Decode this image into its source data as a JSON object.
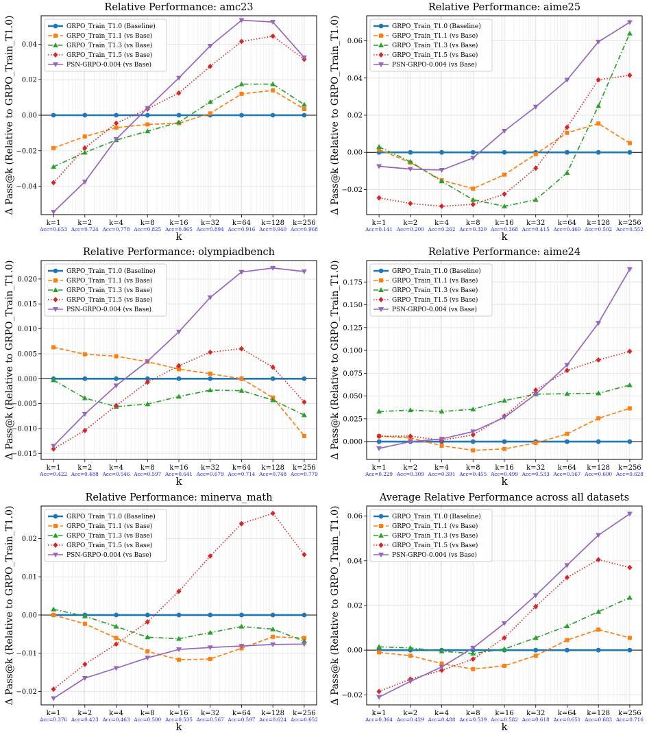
{
  "chart_data": [
    {
      "type": "line",
      "title": "Relative Performance: amc23",
      "xlabel": "k",
      "ylabel": "Δ Pass@k (Relative to GRPO_Train_T1.0)",
      "categories": [
        "k=1",
        "k=2",
        "k=4",
        "k=8",
        "k=16",
        "k=32",
        "k=64",
        "k=128",
        "k=256"
      ],
      "acc_labels": [
        "Acc=0.653",
        "Acc=0.724",
        "Acc=0.778",
        "Acc=0.825",
        "Acc=0.865",
        "Acc=0.894",
        "Acc=0.916",
        "Acc=0.940",
        "Acc=0.968"
      ],
      "ylim": [
        -0.056,
        0.056
      ],
      "yticks": [
        -0.04,
        -0.02,
        0.0,
        0.02,
        0.04
      ],
      "ytick_labels": [
        "−0.04",
        "−0.02",
        "0.00",
        "0.02",
        "0.04"
      ],
      "legend_location": "upper-left",
      "series": [
        {
          "name": "GRPO_Train_T1.0 (Baseline)",
          "values": [
            0,
            0,
            0,
            0,
            0,
            0,
            0,
            0,
            0
          ]
        },
        {
          "name": "GRPO_Train_T1.1 (vs Base)",
          "values": [
            -0.0185,
            -0.012,
            -0.007,
            -0.0052,
            -0.0045,
            0.001,
            0.012,
            0.014,
            0.0035
          ]
        },
        {
          "name": "GRPO_Train_T1.3 (vs Base)",
          "values": [
            -0.029,
            -0.021,
            -0.014,
            -0.009,
            -0.004,
            0.0075,
            0.0175,
            0.0175,
            0.006
          ]
        },
        {
          "name": "GRPO_Train_T1.5 (vs Base)",
          "values": [
            -0.038,
            -0.0185,
            -0.0045,
            0.0035,
            0.0125,
            0.0275,
            0.0415,
            0.0445,
            0.0315
          ]
        },
        {
          "name": "PSN-GRPO-0.004 (vs Base)",
          "values": [
            -0.0545,
            -0.0375,
            -0.0135,
            0.004,
            0.021,
            0.039,
            0.0535,
            0.0525,
            0.0325
          ]
        }
      ]
    },
    {
      "type": "line",
      "title": "Relative Performance: aime25",
      "xlabel": "k",
      "ylabel": "Δ Pass@k (Relative to GRPO_Train_T1.0)",
      "categories": [
        "k=1",
        "k=2",
        "k=4",
        "k=8",
        "k=16",
        "k=32",
        "k=64",
        "k=128",
        "k=256"
      ],
      "acc_labels": [
        "Acc=0.141",
        "Acc=0.200",
        "Acc=0.262",
        "Acc=0.320",
        "Acc=0.368",
        "Acc=0.415",
        "Acc=0.460",
        "Acc=0.502",
        "Acc=0.552"
      ],
      "ylim": [
        -0.0335,
        0.0735
      ],
      "yticks": [
        -0.02,
        0.0,
        0.02,
        0.04,
        0.06
      ],
      "ytick_labels": [
        "−0.02",
        "0.00",
        "0.02",
        "0.04",
        "0.06"
      ],
      "legend_location": "upper-left",
      "series": [
        {
          "name": "GRPO_Train_T1.0 (Baseline)",
          "values": [
            0,
            0,
            0,
            0,
            0,
            0,
            0,
            0,
            0
          ]
        },
        {
          "name": "GRPO_Train_T1.1 (vs Base)",
          "values": [
            0.0015,
            -0.0055,
            -0.015,
            -0.0195,
            -0.012,
            -0.001,
            0.0105,
            0.0155,
            0.005
          ]
        },
        {
          "name": "GRPO_Train_T1.3 (vs Base)",
          "values": [
            0.003,
            -0.005,
            -0.0155,
            -0.0255,
            -0.029,
            -0.0255,
            -0.011,
            0.025,
            0.064
          ]
        },
        {
          "name": "GRPO_Train_T1.5 (vs Base)",
          "values": [
            -0.0245,
            -0.0275,
            -0.029,
            -0.028,
            -0.0225,
            -0.0085,
            0.0135,
            0.039,
            0.0415
          ]
        },
        {
          "name": "PSN-GRPO-0.004 (vs Base)",
          "values": [
            -0.0075,
            -0.009,
            -0.0095,
            -0.003,
            0.0115,
            0.0245,
            0.039,
            0.0595,
            0.07
          ]
        }
      ]
    },
    {
      "type": "line",
      "title": "Relative Performance: olympiadbench",
      "xlabel": "k",
      "ylabel": "Δ Pass@k (Relative to GRPO_Train_T1.0)",
      "categories": [
        "k=1",
        "k=2",
        "k=4",
        "k=8",
        "k=16",
        "k=32",
        "k=64",
        "k=128",
        "k=256"
      ],
      "acc_labels": [
        "Acc=0.422",
        "Acc=0.488",
        "Acc=0.546",
        "Acc=0.597",
        "Acc=0.641",
        "Acc=0.679",
        "Acc=0.714",
        "Acc=0.748",
        "Acc=0.779"
      ],
      "ylim": [
        -0.0162,
        0.0237
      ],
      "yticks": [
        -0.015,
        -0.01,
        -0.005,
        0.0,
        0.005,
        0.01,
        0.015,
        0.02
      ],
      "ytick_labels": [
        "−0.015",
        "−0.010",
        "−0.005",
        "0.000",
        "0.005",
        "0.010",
        "0.015",
        "0.020"
      ],
      "legend_location": "upper-left",
      "series": [
        {
          "name": "GRPO_Train_T1.0 (Baseline)",
          "values": [
            0,
            0,
            0,
            0,
            0,
            0,
            0,
            0,
            0
          ]
        },
        {
          "name": "GRPO_Train_T1.1 (vs Base)",
          "values": [
            0.0063,
            0.0049,
            0.0045,
            0.0034,
            0.0019,
            0.001,
            0.0,
            -0.0038,
            -0.0115
          ]
        },
        {
          "name": "GRPO_Train_T1.3 (vs Base)",
          "values": [
            -0.0003,
            -0.0039,
            -0.0056,
            -0.0051,
            -0.0036,
            -0.0023,
            -0.0024,
            -0.0043,
            -0.0073
          ]
        },
        {
          "name": "GRPO_Train_T1.5 (vs Base)",
          "values": [
            -0.0141,
            -0.0104,
            -0.0054,
            -0.0007,
            0.0026,
            0.0053,
            0.006,
            0.0023,
            -0.0047
          ]
        },
        {
          "name": "PSN-GRPO-0.004 (vs Base)",
          "values": [
            -0.0135,
            -0.0071,
            -0.0014,
            0.0035,
            0.0094,
            0.0163,
            0.0214,
            0.0222,
            0.0215
          ]
        }
      ]
    },
    {
      "type": "line",
      "title": "Relative Performance: aime24",
      "xlabel": "k",
      "ylabel": "Δ Pass@k (Relative to GRPO_Train_T1.0)",
      "categories": [
        "k=1",
        "k=2",
        "k=4",
        "k=8",
        "k=16",
        "k=32",
        "k=64",
        "k=128",
        "k=256"
      ],
      "acc_labels": [
        "Acc=0.229",
        "Acc=0.309",
        "Acc=0.391",
        "Acc=0.455",
        "Acc=0.499",
        "Acc=0.533",
        "Acc=0.567",
        "Acc=0.600",
        "Acc=0.628"
      ],
      "ylim": [
        -0.0195,
        0.1985
      ],
      "yticks": [
        0.0,
        0.025,
        0.05,
        0.075,
        0.1,
        0.125,
        0.15,
        0.175
      ],
      "ytick_labels": [
        "0.000",
        "0.025",
        "0.050",
        "0.075",
        "0.100",
        "0.125",
        "0.150",
        "0.175"
      ],
      "legend_location": "upper-left",
      "series": [
        {
          "name": "GRPO_Train_T1.0 (Baseline)",
          "values": [
            0,
            0,
            0,
            0,
            0,
            0,
            0,
            0,
            0
          ]
        },
        {
          "name": "GRPO_Train_T1.1 (vs Base)",
          "values": [
            0.006,
            0.004,
            -0.0045,
            -0.0095,
            -0.008,
            -0.0015,
            0.0085,
            0.0255,
            0.0365
          ]
        },
        {
          "name": "GRPO_Train_T1.3 (vs Base)",
          "values": [
            0.033,
            0.0345,
            0.033,
            0.0355,
            0.045,
            0.052,
            0.0525,
            0.053,
            0.062
          ]
        },
        {
          "name": "GRPO_Train_T1.5 (vs Base)",
          "values": [
            0.006,
            0.006,
            0.0015,
            0.0075,
            0.028,
            0.0565,
            0.078,
            0.0895,
            0.099
          ]
        },
        {
          "name": "PSN-GRPO-0.004 (vs Base)",
          "values": [
            -0.0075,
            0.0,
            0.003,
            0.011,
            0.0265,
            0.052,
            0.084,
            0.13,
            0.189
          ]
        }
      ]
    },
    {
      "type": "line",
      "title": "Relative Performance: minerva_math",
      "xlabel": "k",
      "ylabel": "Δ Pass@k (Relative to GRPO_Train_T1.0)",
      "categories": [
        "k=1",
        "k=2",
        "k=4",
        "k=8",
        "k=16",
        "k=32",
        "k=64",
        "k=128",
        "k=256"
      ],
      "acc_labels": [
        "Acc=0.376",
        "Acc=0.423",
        "Acc=0.463",
        "Acc=0.500",
        "Acc=0.535",
        "Acc=0.567",
        "Acc=0.597",
        "Acc=0.624",
        "Acc=0.652"
      ],
      "ylim": [
        -0.0235,
        0.0285
      ],
      "yticks": [
        -0.02,
        -0.01,
        0.0,
        0.01,
        0.02
      ],
      "ytick_labels": [
        "−0.02",
        "−0.01",
        "0.00",
        "0.01",
        "0.02"
      ],
      "legend_location": "upper-left",
      "series": [
        {
          "name": "GRPO_Train_T1.0 (Baseline)",
          "values": [
            0,
            0,
            0,
            0,
            0,
            0,
            0,
            0,
            0
          ]
        },
        {
          "name": "GRPO_Train_T1.1 (vs Base)",
          "values": [
            0.0,
            -0.0023,
            -0.006,
            -0.0095,
            -0.0117,
            -0.0115,
            -0.0087,
            -0.0057,
            -0.006
          ]
        },
        {
          "name": "GRPO_Train_T1.3 (vs Base)",
          "values": [
            0.0015,
            -0.0003,
            -0.003,
            -0.0058,
            -0.0062,
            -0.0046,
            -0.003,
            -0.0037,
            -0.0068
          ]
        },
        {
          "name": "GRPO_Train_T1.5 (vs Base)",
          "values": [
            -0.0194,
            -0.0129,
            -0.0076,
            -0.0018,
            0.0062,
            0.0154,
            0.0239,
            0.0266,
            0.0158
          ]
        },
        {
          "name": "PSN-GRPO-0.004 (vs Base)",
          "values": [
            -0.0218,
            -0.0165,
            -0.0139,
            -0.0112,
            -0.009,
            -0.0085,
            -0.0081,
            -0.0077,
            -0.0076
          ]
        }
      ]
    },
    {
      "type": "line",
      "title": "Average Relative Performance across all datasets",
      "xlabel": "k",
      "ylabel": "Δ Pass@k (Relative to GRPO_Train_T1.0)",
      "categories": [
        "k=1",
        "k=2",
        "k=4",
        "k=8",
        "k=16",
        "k=32",
        "k=64",
        "k=128",
        "k=256"
      ],
      "acc_labels": [
        "Acc=0.364",
        "Acc=0.429",
        "Acc=0.488",
        "Acc=0.539",
        "Acc=0.582",
        "Acc=0.618",
        "Acc=0.651",
        "Acc=0.683",
        "Acc=0.716"
      ],
      "ylim": [
        -0.0245,
        0.0645
      ],
      "yticks": [
        -0.02,
        0.0,
        0.02,
        0.04,
        0.06
      ],
      "ytick_labels": [
        "−0.02",
        "0.00",
        "0.02",
        "0.04",
        "0.06"
      ],
      "legend_location": "upper-left",
      "series": [
        {
          "name": "GRPO_Train_T1.0 (Baseline)",
          "values": [
            0,
            0,
            0,
            0,
            0,
            0,
            0,
            0,
            0
          ]
        },
        {
          "name": "GRPO_Train_T1.1 (vs Base)",
          "values": [
            -0.001,
            -0.0025,
            -0.006,
            -0.0085,
            -0.007,
            -0.0025,
            0.0045,
            0.0092,
            0.0055
          ]
        },
        {
          "name": "GRPO_Train_T1.3 (vs Base)",
          "values": [
            0.0015,
            0.001,
            -0.0005,
            -0.0015,
            0.0005,
            0.0055,
            0.0108,
            0.0172,
            0.0235
          ]
        },
        {
          "name": "GRPO_Train_T1.5 (vs Base)",
          "values": [
            -0.0185,
            -0.013,
            -0.009,
            -0.004,
            0.0055,
            0.0195,
            0.0325,
            0.0405,
            0.037
          ]
        },
        {
          "name": "PSN-GRPO-0.004 (vs Base)",
          "values": [
            -0.021,
            -0.014,
            -0.0075,
            0.001,
            0.012,
            0.0245,
            0.038,
            0.0515,
            0.061
          ]
        }
      ]
    }
  ],
  "series_styles": [
    {
      "color": "#1f77b4",
      "marker": "circle",
      "dash": "solid"
    },
    {
      "color": "#ff7f0e",
      "marker": "square",
      "dash": "dashed"
    },
    {
      "color": "#2ca02c",
      "marker": "triangle-up",
      "dash": "dashdot"
    },
    {
      "color": "#d62728",
      "marker": "diamond",
      "dash": "dotted"
    },
    {
      "color": "#9467bd",
      "marker": "triangle-down",
      "dash": "solid"
    }
  ]
}
